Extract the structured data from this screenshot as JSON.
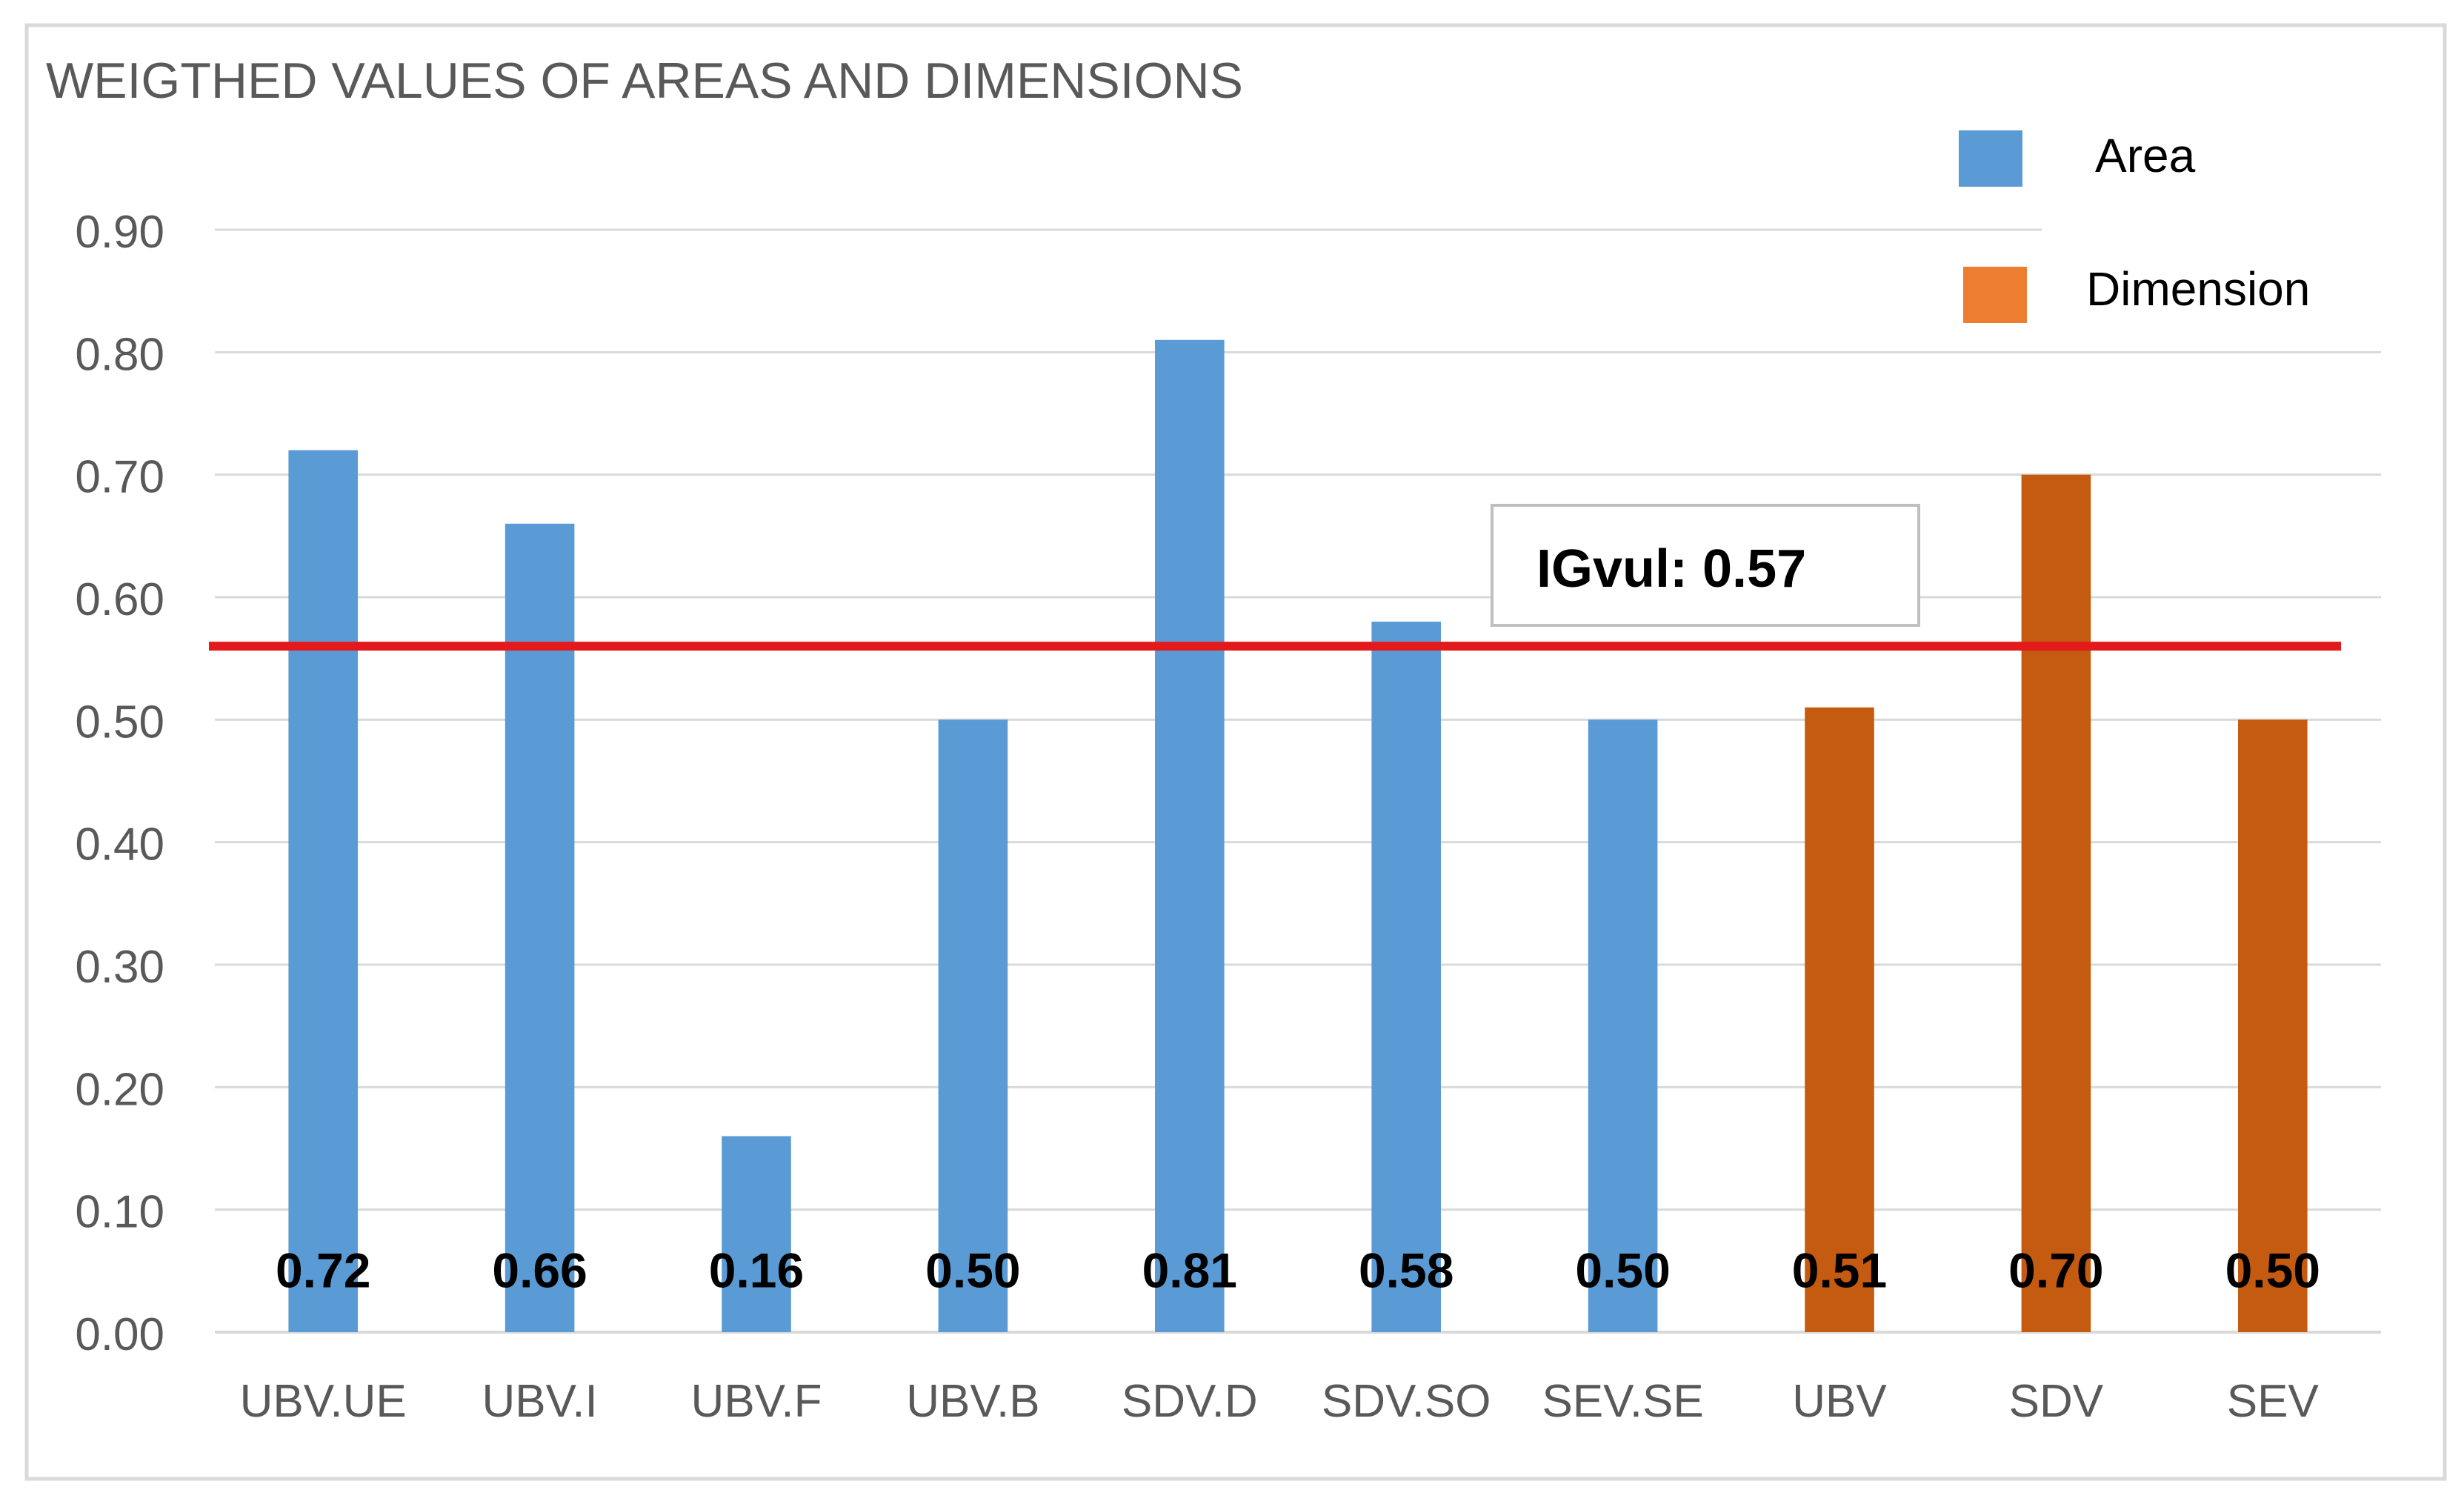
{
  "chart_data": {
    "type": "bar",
    "title": "WEIGTHED VALUES OF AREAS AND DIMENSIONS",
    "xlabel": "",
    "ylabel": "",
    "ylim": [
      0,
      0.9
    ],
    "y_ticks": [
      "0.00",
      "0.10",
      "0.20",
      "0.30",
      "0.40",
      "0.50",
      "0.60",
      "0.70",
      "0.80",
      "0.90"
    ],
    "grid": true,
    "legend_position": "top-right",
    "categories": [
      "UBV.UE",
      "UBV.I",
      "UBV.F",
      "UBV.B",
      "SDV.D",
      "SDV.SO",
      "SEV.SE",
      "UBV",
      "SDV",
      "SEV"
    ],
    "values": [
      0.72,
      0.66,
      0.16,
      0.5,
      0.81,
      0.58,
      0.5,
      0.51,
      0.7,
      0.5
    ],
    "value_labels": [
      "0.72",
      "0.66",
      "0.16",
      "0.50",
      "0.81",
      "0.58",
      "0.50",
      "0.51",
      "0.70",
      "0.50"
    ],
    "bar_types": [
      "Area",
      "Area",
      "Area",
      "Area",
      "Area",
      "Area",
      "Area",
      "Dimension",
      "Dimension",
      "Dimension"
    ],
    "legend": [
      {
        "name": "Area",
        "color": "#5b9bd5"
      },
      {
        "name": "Dimension",
        "color": "#ed7d31"
      }
    ],
    "bar_colors": {
      "Area": "#5b9bd5",
      "Dimension": "#c55a11"
    },
    "reference_line": {
      "value": 0.56,
      "color": "#e31a1c"
    },
    "annotation": {
      "text": "IGvul: 0.57"
    }
  }
}
